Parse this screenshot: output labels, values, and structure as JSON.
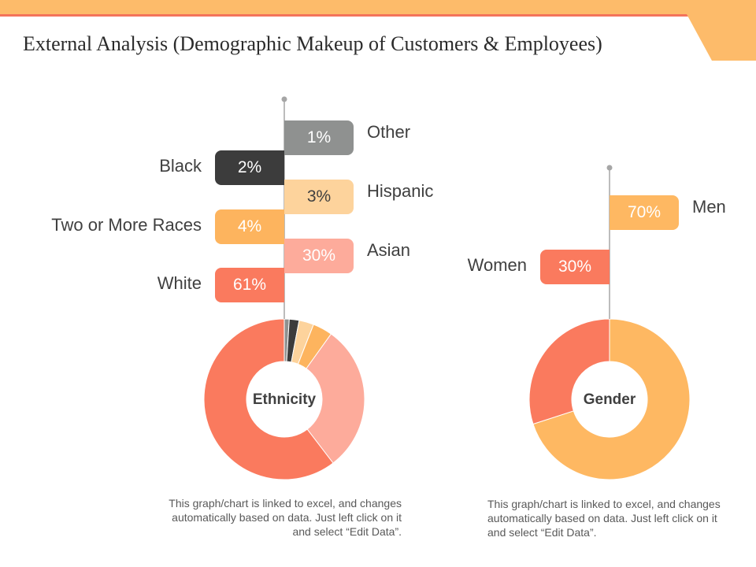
{
  "title": "External Analysis (Demographic Makeup of Customers & Employees)",
  "colors": {
    "accent": "#fdbb6a",
    "accent_line": "#f4735a",
    "dark_gray": "#3c3c3c",
    "gray": "#8f9190"
  },
  "chart_data": [
    {
      "type": "pie",
      "center_label": "Ethnicity",
      "slices": [
        {
          "label": "Other",
          "value": 1,
          "value_label": "1%",
          "color": "#8f9190"
        },
        {
          "label": "Black",
          "value": 2,
          "value_label": "2%",
          "color": "#3c3c3c"
        },
        {
          "label": "Hispanic",
          "value": 3,
          "value_label": "3%",
          "color": "#fdd39c"
        },
        {
          "label": "Two or More Races",
          "value": 4,
          "value_label": "4%",
          "color": "#fdb45e"
        },
        {
          "label": "Asian",
          "value": 30,
          "value_label": "30%",
          "color": "#fdab9b"
        },
        {
          "label": "White",
          "value": 61,
          "value_label": "61%",
          "color": "#fa7a5e"
        }
      ],
      "note": [
        "This graph/chart is linked to excel, and changes",
        "automatically based on data. Just left click on it",
        "and select “Edit Data”."
      ]
    },
    {
      "type": "pie",
      "center_label": "Gender",
      "slices": [
        {
          "label": "Men",
          "value": 70,
          "value_label": "70%",
          "color": "#feb862"
        },
        {
          "label": "Women",
          "value": 30,
          "value_label": "30%",
          "color": "#fa7a5e"
        }
      ],
      "note": [
        "This graph/chart is linked to excel, and changes",
        "automatically based on data. Just left click on it",
        "and select “Edit Data”."
      ]
    }
  ]
}
